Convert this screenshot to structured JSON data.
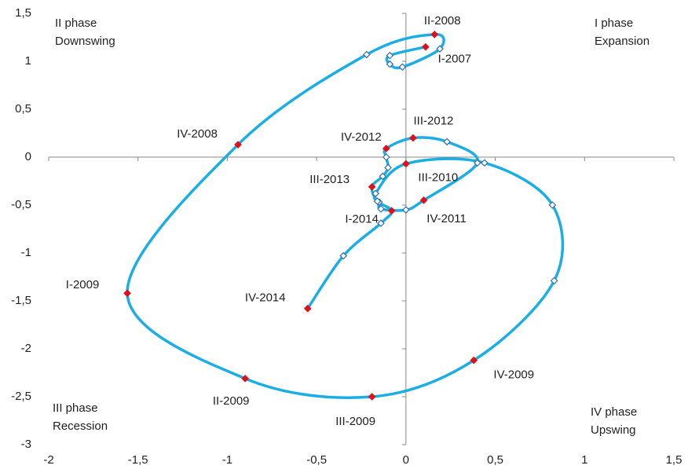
{
  "chart_data": {
    "type": "scatter",
    "xlim": [
      -2,
      1.5
    ],
    "ylim": [
      -3,
      1.5
    ],
    "xticks": [
      -2,
      {
        "value": -1.5,
        "label": "-1,5"
      },
      -1,
      {
        "value": -0.5,
        "label": "-0,5"
      },
      0,
      {
        "value": 0.5,
        "label": "0,5"
      },
      1,
      {
        "value": 1.5,
        "label": "1,5"
      }
    ],
    "yticks": [
      -3,
      {
        "value": -2.5,
        "label": "-2,5"
      },
      -2,
      {
        "value": -1.5,
        "label": "-1,5"
      },
      -1,
      {
        "value": -0.5,
        "label": "-0,5"
      },
      0,
      {
        "value": 0.5,
        "label": "0,5"
      },
      1,
      {
        "value": 1.5,
        "label": "1,5"
      }
    ],
    "annotations": [
      [
        "II phase",
        "Downswing"
      ],
      [
        "I phase",
        "Expansion"
      ],
      [
        "III phase",
        "Recession"
      ],
      [
        "IV phase",
        "Upswing"
      ]
    ],
    "series": [
      {
        "color": "#1aaee5",
        "marker_color": "#ffffff",
        "labeled_marker_color": "#e0101a",
        "x": [
          0.11,
          -0.09,
          -0.09,
          -0.02,
          0.19,
          0.16,
          -0.22,
          -0.94,
          -1.56,
          -0.9,
          -0.19,
          0.38,
          0.83,
          0.82,
          0.44,
          0,
          -0.17,
          -0.15,
          -0.14,
          0,
          0.1,
          0.4,
          0.23,
          0.04,
          -0.11,
          -0.11,
          -0.1,
          -0.13,
          -0.19,
          -0.16,
          -0.08,
          -0.14,
          -0.35,
          -0.55
        ],
        "y": [
          1.15,
          1.06,
          0.97,
          0.94,
          1.13,
          1.28,
          1.07,
          0.13,
          -1.42,
          -2.31,
          -2.5,
          -2.12,
          -1.29,
          -0.5,
          -0.06,
          -0.07,
          -0.38,
          -0.47,
          -0.54,
          -0.55,
          -0.45,
          -0.06,
          0.16,
          0.2,
          0.09,
          0,
          -0.11,
          -0.2,
          -0.31,
          -0.46,
          -0.56,
          -0.69,
          -1.03,
          -1.58
        ],
        "point_labels": [
          "I-2007",
          null,
          null,
          null,
          null,
          "II-2008",
          null,
          "IV-2008",
          "I-2009",
          "II-2009",
          "III-2009",
          "IV-2009",
          null,
          null,
          null,
          "III-2010",
          null,
          null,
          null,
          null,
          "IV-2011",
          null,
          null,
          "III-2012",
          "IV-2012",
          null,
          null,
          null,
          "III-2013",
          null,
          "I-2014",
          null,
          null,
          "IV-2014"
        ]
      }
    ]
  }
}
